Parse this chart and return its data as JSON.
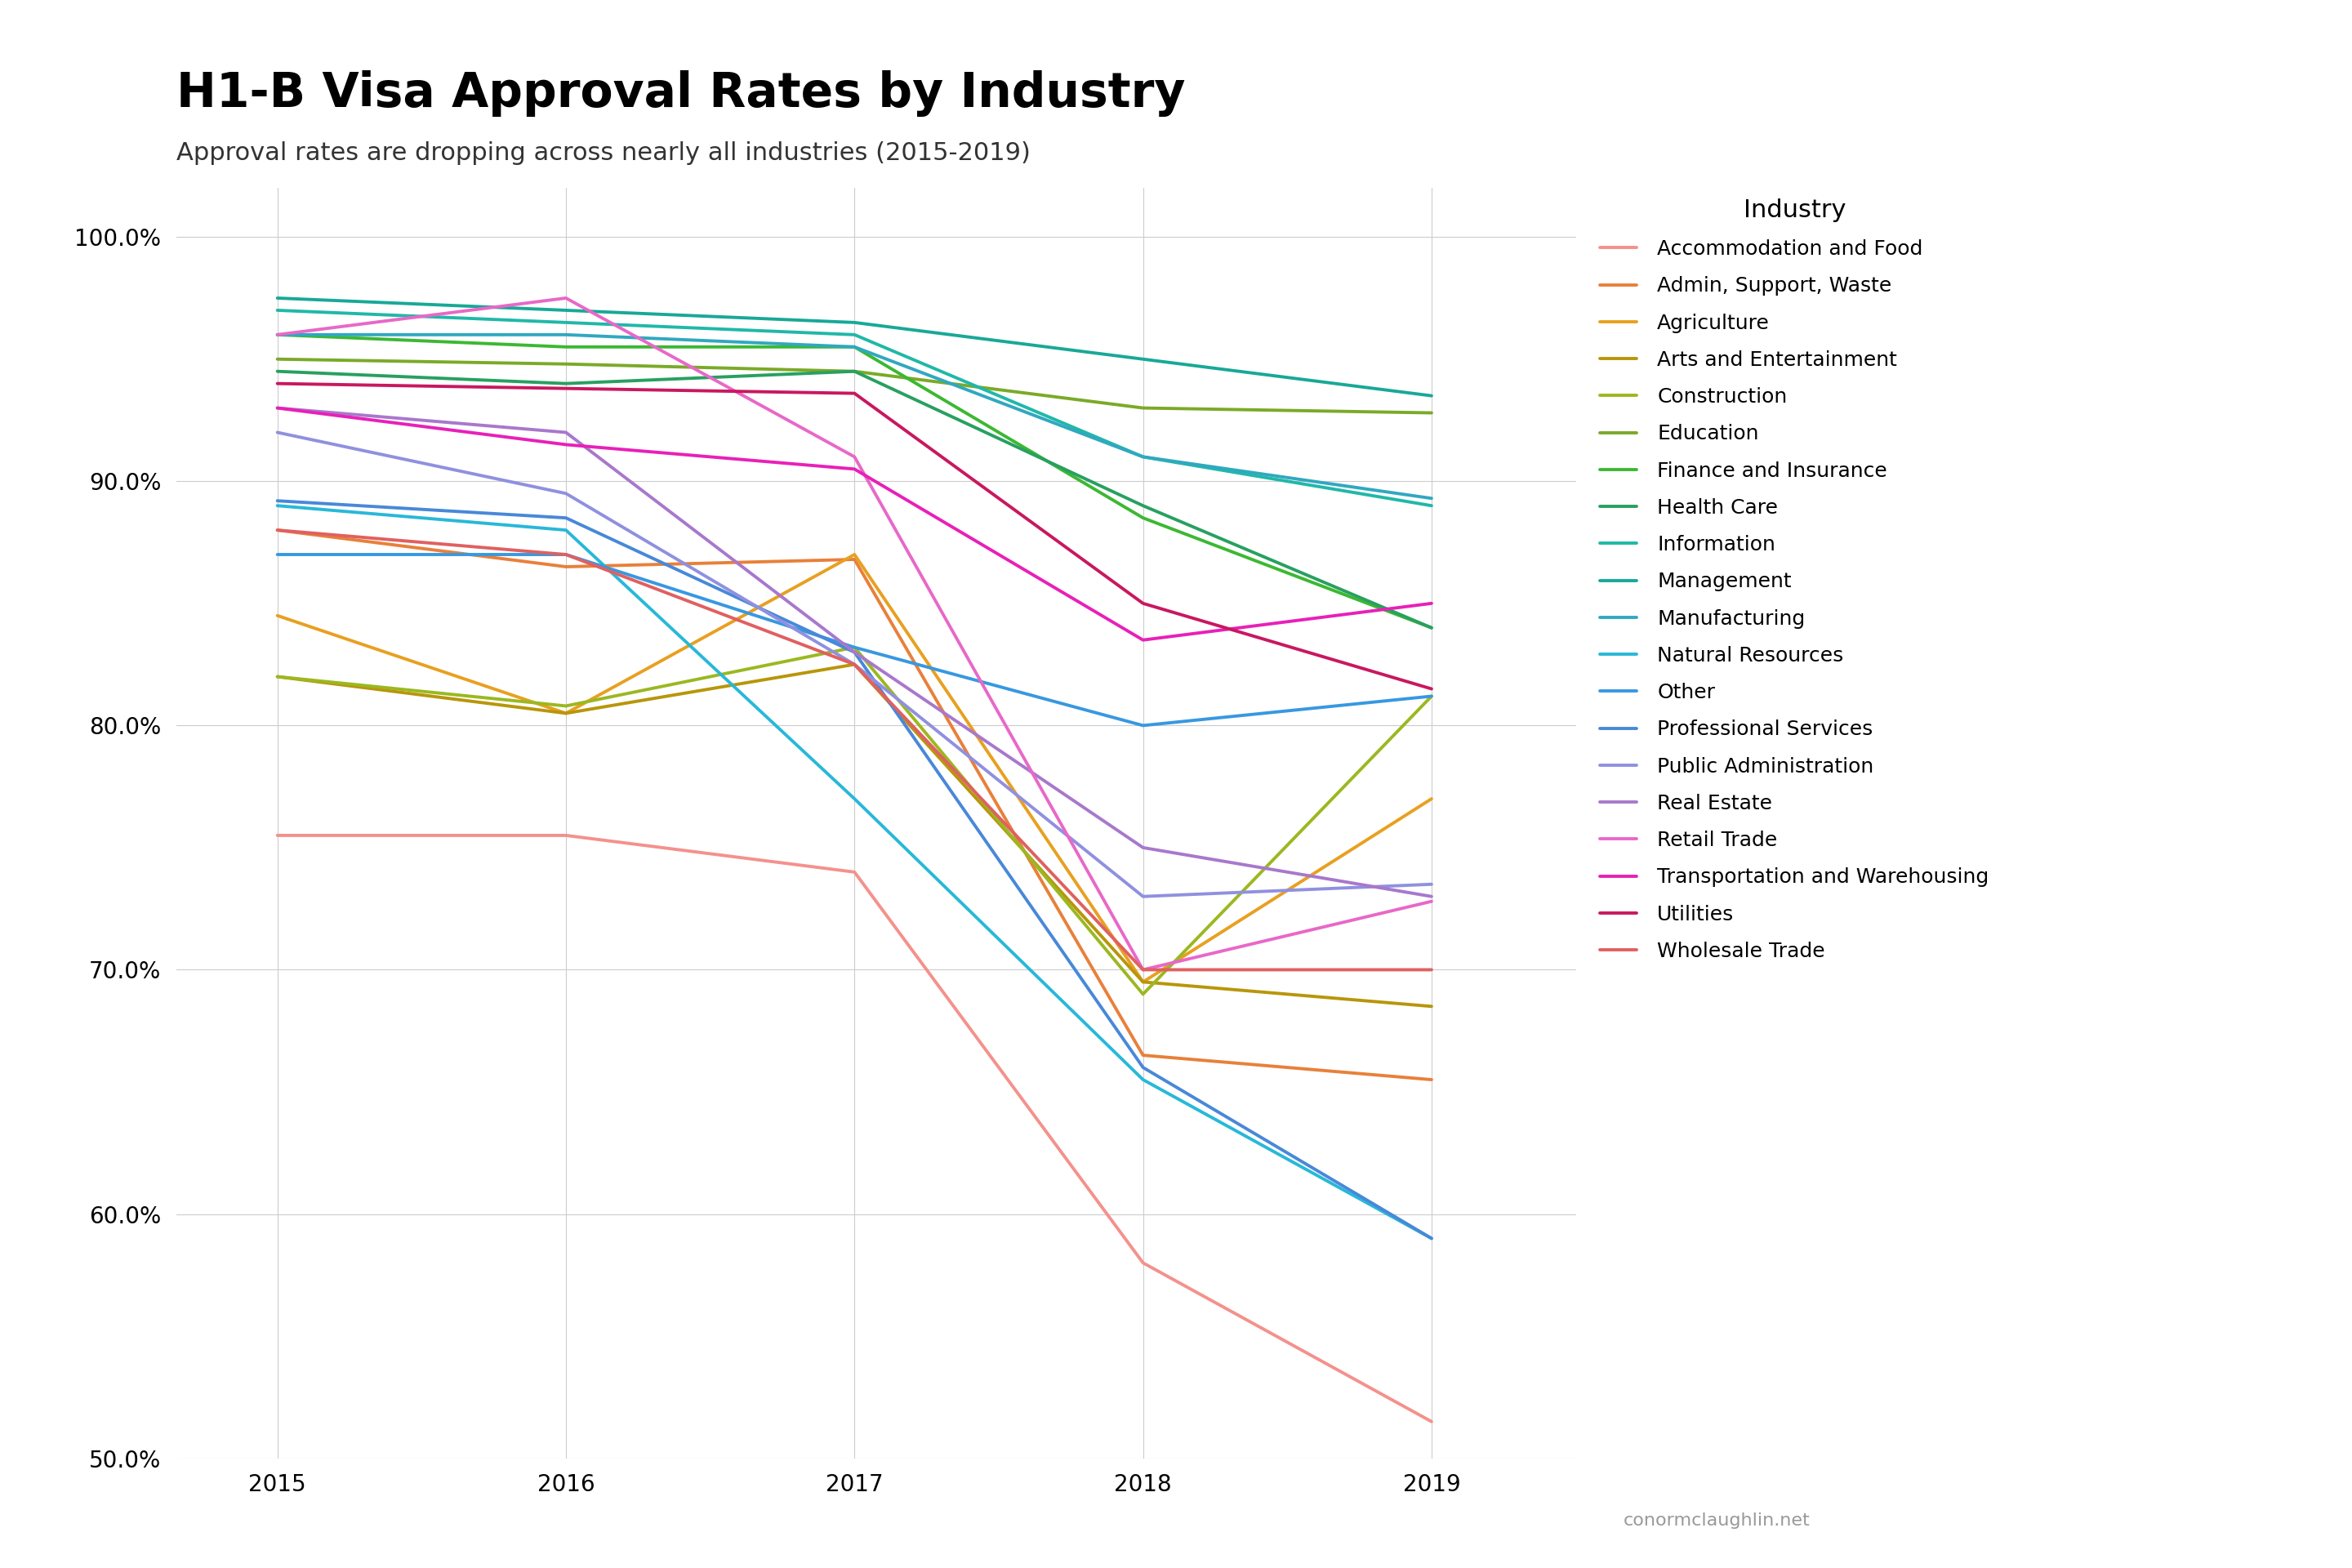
{
  "title": "H1-B Visa Approval Rates by Industry",
  "subtitle": "Approval rates are dropping across nearly all industries (2015-2019)",
  "footer": "conormclaughlin.net",
  "years": [
    2015,
    2016,
    2017,
    2018,
    2019
  ],
  "series": {
    "Accommodation and Food": [
      0.755,
      0.755,
      0.74,
      0.58,
      0.515
    ],
    "Admin, Support, Waste": [
      0.88,
      0.865,
      0.868,
      0.665,
      0.655
    ],
    "Agriculture": [
      0.845,
      0.805,
      0.87,
      0.695,
      0.77
    ],
    "Arts and Entertainment": [
      0.82,
      0.805,
      0.825,
      0.695,
      0.685
    ],
    "Construction": [
      0.82,
      0.808,
      0.832,
      0.69,
      0.812
    ],
    "Education": [
      0.95,
      0.948,
      0.945,
      0.93,
      0.928
    ],
    "Finance and Insurance": [
      0.96,
      0.955,
      0.955,
      0.885,
      0.84
    ],
    "Health Care": [
      0.945,
      0.94,
      0.945,
      0.89,
      0.84
    ],
    "Information": [
      0.97,
      0.965,
      0.96,
      0.91,
      0.89
    ],
    "Management": [
      0.975,
      0.97,
      0.965,
      0.95,
      0.935
    ],
    "Manufacturing": [
      0.96,
      0.96,
      0.955,
      0.91,
      0.893
    ],
    "Natural Resources": [
      0.89,
      0.88,
      0.77,
      0.655,
      0.59
    ],
    "Other": [
      0.87,
      0.87,
      0.832,
      0.8,
      0.812
    ],
    "Professional Services": [
      0.892,
      0.885,
      0.83,
      0.66,
      0.59
    ],
    "Public Administration": [
      0.92,
      0.895,
      0.825,
      0.73,
      0.735
    ],
    "Real Estate": [
      0.93,
      0.92,
      0.83,
      0.75,
      0.73
    ],
    "Retail Trade": [
      0.96,
      0.975,
      0.91,
      0.7,
      0.728
    ],
    "Transportation and Warehousing": [
      0.93,
      0.915,
      0.905,
      0.835,
      0.85
    ],
    "Utilities": [
      0.94,
      0.938,
      0.936,
      0.85,
      0.815
    ],
    "Wholesale Trade": [
      0.88,
      0.87,
      0.825,
      0.7,
      0.7
    ]
  },
  "colors": {
    "Accommodation and Food": "#F4918C",
    "Admin, Support, Waste": "#E8803A",
    "Agriculture": "#E8A020",
    "Arts and Entertainment": "#B8960A",
    "Construction": "#9BB820",
    "Education": "#7AAA28",
    "Finance and Insurance": "#3CB832",
    "Health Care": "#28A060",
    "Information": "#20B8A8",
    "Management": "#18A898",
    "Manufacturing": "#30A8C0",
    "Natural Resources": "#28B8D8",
    "Other": "#3898E0",
    "Professional Services": "#4888D8",
    "Public Administration": "#9090E0",
    "Real Estate": "#A878CC",
    "Retail Trade": "#E868C8",
    "Transportation and Warehousing": "#E820B8",
    "Utilities": "#C81860",
    "Wholesale Trade": "#E06060"
  },
  "background_color": "#FFFFFF",
  "grid_color": "#CCCCCC",
  "ylim": [
    0.5,
    1.02
  ],
  "yticks": [
    0.5,
    0.6,
    0.7,
    0.8,
    0.9,
    1.0
  ],
  "title_fontsize": 42,
  "subtitle_fontsize": 22,
  "legend_fontsize": 18,
  "legend_title_fontsize": 22,
  "tick_fontsize": 20,
  "footer_fontsize": 16,
  "linewidth": 2.8
}
